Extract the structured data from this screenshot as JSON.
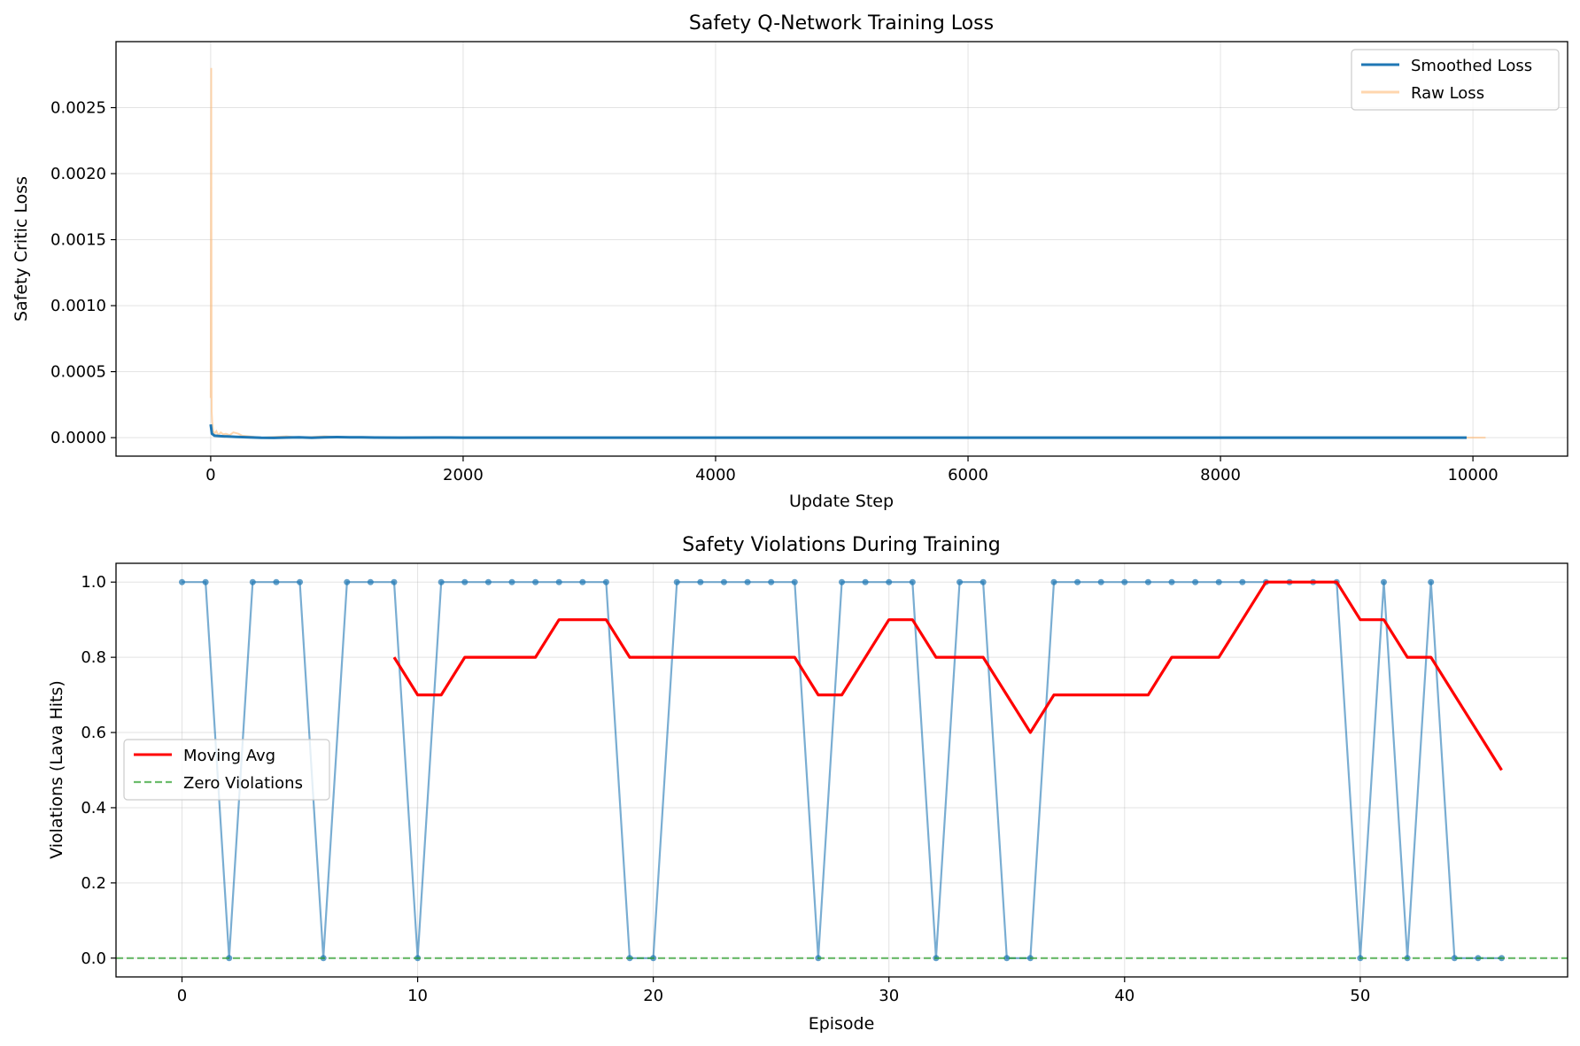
{
  "chart_data": [
    {
      "type": "line",
      "title": "Safety Q-Network Training Loss",
      "xlabel": "Update Step",
      "ylabel": "Safety Critic Loss",
      "xlim": [
        -750,
        10750
      ],
      "ylim": [
        -0.00014,
        0.003
      ],
      "xticks": [
        0,
        2000,
        4000,
        6000,
        8000,
        10000
      ],
      "xtick_labels": [
        "0",
        "2000",
        "4000",
        "6000",
        "8000",
        "10000"
      ],
      "yticks": [
        0.0,
        0.0005,
        0.001,
        0.0015,
        0.002,
        0.0025
      ],
      "ytick_labels": [
        "0.0000",
        "0.0005",
        "0.0010",
        "0.0015",
        "0.0020",
        "0.0025"
      ],
      "grid": true,
      "legend_position": "top-right",
      "series": [
        {
          "name": "Smoothed Loss",
          "color": "#1f77b4",
          "x": [
            0,
            10,
            30,
            60,
            100,
            150,
            200,
            300,
            400,
            500,
            600,
            700,
            800,
            900,
            1000,
            1100,
            1200,
            1300,
            1500,
            1800,
            2000,
            3000,
            4000,
            5000,
            6000,
            7000,
            8000,
            9000,
            9950
          ],
          "y": [
            0.0001,
            3e-05,
            1.5e-05,
            1.2e-05,
            1e-05,
            8e-06,
            6e-06,
            2e-06,
            -1e-06,
            -2e-06,
            1e-06,
            2e-06,
            -1e-06,
            3e-06,
            4e-06,
            3e-06,
            2e-06,
            1e-06,
            0.0,
            1e-06,
            0.0,
            0.0,
            0.0,
            0.0,
            0.0,
            0.0,
            0.0,
            0.0,
            0.0
          ]
        },
        {
          "name": "Raw Loss",
          "color": "#ffbb78",
          "x": [
            0,
            4,
            8,
            12,
            20,
            30,
            45,
            60,
            80,
            100,
            120,
            150,
            180,
            220,
            250,
            300,
            400,
            500,
            600,
            700,
            800,
            900,
            1000,
            1200,
            1500,
            2000,
            4000,
            6000,
            8000,
            10000,
            10100
          ],
          "y": [
            0.0003,
            0.0028,
            0.0002,
            0.00012,
            5e-05,
            3e-05,
            5e-05,
            2e-05,
            4e-05,
            2.5e-05,
            3e-05,
            2e-05,
            4e-05,
            3e-05,
            1.5e-05,
            1e-05,
            0.0,
            5e-06,
            1e-05,
            0.0,
            5e-06,
            1e-05,
            5e-06,
            0.0,
            0.0,
            0.0,
            0.0,
            0.0,
            0.0,
            0.0,
            0.0
          ]
        }
      ]
    },
    {
      "type": "line",
      "title": "Safety Violations During Training",
      "xlabel": "Episode",
      "ylabel": "Violations (Lava Hits)",
      "xlim": [
        -2.8,
        58.8
      ],
      "ylim": [
        -0.05,
        1.05
      ],
      "xticks": [
        0,
        10,
        20,
        30,
        40,
        50
      ],
      "xtick_labels": [
        "0",
        "10",
        "20",
        "30",
        "40",
        "50"
      ],
      "yticks": [
        0.0,
        0.2,
        0.4,
        0.6,
        0.8,
        1.0
      ],
      "ytick_labels": [
        "0.0",
        "0.2",
        "0.4",
        "0.6",
        "0.8",
        "1.0"
      ],
      "grid": true,
      "legend_position": "center-left",
      "series": [
        {
          "name": "",
          "color": "#1f77b4",
          "x": [
            0,
            1,
            2,
            3,
            4,
            5,
            6,
            7,
            8,
            9,
            10,
            11,
            12,
            13,
            14,
            15,
            16,
            17,
            18,
            19,
            20,
            21,
            22,
            23,
            24,
            25,
            26,
            27,
            28,
            29,
            30,
            31,
            32,
            33,
            34,
            35,
            36,
            37,
            38,
            39,
            40,
            41,
            42,
            43,
            44,
            45,
            46,
            47,
            48,
            49,
            50,
            51,
            52,
            53,
            54,
            55,
            56
          ],
          "y": [
            1,
            1,
            0,
            1,
            1,
            1,
            0,
            1,
            1,
            1,
            0,
            1,
            1,
            1,
            1,
            1,
            1,
            1,
            1,
            0,
            0,
            1,
            1,
            1,
            1,
            1,
            1,
            0,
            1,
            1,
            1,
            1,
            0,
            1,
            1,
            0,
            0,
            1,
            1,
            1,
            1,
            1,
            1,
            1,
            1,
            1,
            1,
            1,
            1,
            1,
            0,
            1,
            0,
            1,
            0,
            0,
            0
          ]
        },
        {
          "name": "Moving Avg",
          "color": "#ff0000",
          "x": [
            9,
            10,
            11,
            12,
            13,
            14,
            15,
            16,
            17,
            18,
            19,
            20,
            21,
            22,
            23,
            24,
            25,
            26,
            27,
            28,
            29,
            30,
            31,
            32,
            33,
            34,
            35,
            36,
            37,
            38,
            39,
            40,
            41,
            42,
            43,
            44,
            45,
            46,
            47,
            48,
            49,
            50,
            51,
            52,
            53,
            54,
            55,
            56
          ],
          "y": [
            0.8,
            0.7,
            0.7,
            0.8,
            0.8,
            0.8,
            0.8,
            0.9,
            0.9,
            0.9,
            0.8,
            0.8,
            0.8,
            0.8,
            0.8,
            0.8,
            0.8,
            0.8,
            0.7,
            0.7,
            0.8,
            0.9,
            0.9,
            0.8,
            0.8,
            0.8,
            0.7,
            0.6,
            0.7,
            0.7,
            0.7,
            0.7,
            0.7,
            0.8,
            0.8,
            0.8,
            0.9,
            1.0,
            1.0,
            1.0,
            1.0,
            0.9,
            0.9,
            0.8,
            0.8,
            0.7,
            0.6,
            0.5
          ]
        },
        {
          "name": "Zero Violations",
          "color": "#2ca02c",
          "x": [
            -2.8,
            58.8
          ],
          "y": [
            0,
            0
          ]
        }
      ]
    }
  ]
}
